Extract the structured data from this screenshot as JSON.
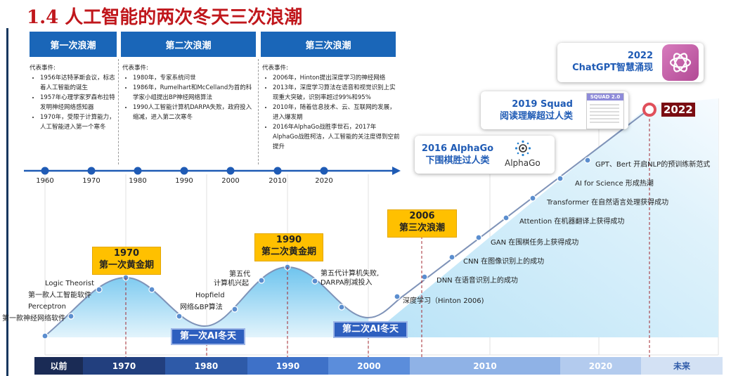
{
  "title": "1.4 人工智能的两次冬天三次浪潮",
  "waves": [
    {
      "label": "第一次浪潮",
      "heading": "代表事件:",
      "events": [
        "1956年达特茅斯会议，标志着人工智能的诞生",
        "1957年心理学家罗森布拉特发明神经网络感知器",
        "1970年，受限于计算能力，人工智能进入第一个寒冬"
      ]
    },
    {
      "label": "第二次浪潮",
      "heading": "代表事件:",
      "events": [
        "1980年，专家系统问世",
        "1986年，Rumelhart和McCelland为首的科学家小组提出BP神经网络算法",
        "1990人工智能计算机DARPA失败，政府投入缩减，进入第二次寒冬"
      ]
    },
    {
      "label": "第三次浪潮",
      "heading": "代表事件:",
      "events": [
        "2006年，Hinton提出深度学习的神经网络",
        "2013年，深度学习算法在语音和视觉识别上实现重大突破，识别率超过99%和95%",
        "2010年，随着信息技术、云、互联网的发展，进入爆发期",
        "2016年AlphaGo战胜李世石，2017年AlphaGo战胜柯洁，人工智能的关注度得到空前提升"
      ]
    }
  ],
  "top_years": [
    "1960",
    "1970",
    "1980",
    "1990",
    "2000",
    "2010",
    "2020"
  ],
  "milestones": {
    "peak1_year": "1970",
    "peak1_label": "第一次黄金期",
    "peak2_year": "1990",
    "peak2_label": "第二次黄金期",
    "third_year": "2006",
    "third_label": "第三次浪潮",
    "winter1": "第一次AI冬天",
    "winter2": "第二次AI冬天",
    "year2022": "2022"
  },
  "annotations": {
    "perceptron_1": "Perceptron",
    "perceptron_2": "第一款神经网络软件",
    "logic_1": "Logic Theorist",
    "logic_2": "第一款人工智能软件",
    "hopfield_1": "Hopfield",
    "hopfield_2": "网络&BP算法",
    "fifth_1": "第五代",
    "fifth_2": "计算机兴起",
    "fail_1": "第五代计算机失败,",
    "fail_2": "DARPA削减投入",
    "deep": "深度学习（Hinton 2006)",
    "dnn": "DNN 在语音识别上的成功",
    "cnn": "CNN 在图像识别上的成功",
    "gan": "GAN 在围棋任务上获得成功",
    "attention": "Attention 在机器翻译上获得成功",
    "transformer": "Transformer 在自然语言处理获得成功",
    "ai_science": "AI for Science 形成热潮",
    "gpt_bert": "GPT、Bert 开启NLP的预训练新范式"
  },
  "cards": {
    "chatgpt_1": "2022",
    "chatgpt_2": "ChatGPT智慧涌现",
    "squad_1": "2019 Squad",
    "squad_2": "阅读理解超过人类",
    "squad_badge": "SQUAD 2.0",
    "alphago_1": "2016 AlphaGo",
    "alphago_2": "下围棋胜过人类",
    "alphago_logo": "AlphaGo"
  },
  "bottom_bar": [
    "以前",
    "1970",
    "1980",
    "1990",
    "2000",
    "2010",
    "2020",
    "未来"
  ],
  "colors": {
    "title": "#c0171c",
    "wave_header": "#1a66b8",
    "timeline": "#1f5bb5",
    "golden": "#ffc000",
    "winter": "#2e5fbf",
    "chatgpt": "#c65aa6"
  }
}
